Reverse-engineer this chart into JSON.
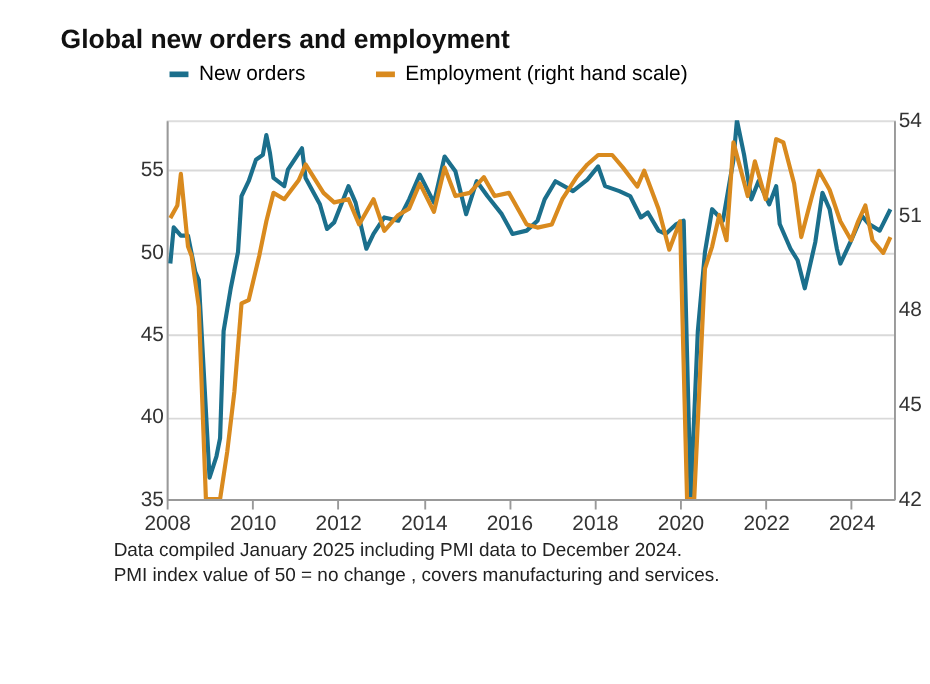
{
  "chart_data": {
    "type": "line",
    "title": "Global new orders and employment",
    "x": [
      "2008-02",
      "2008-03",
      "2008-05",
      "2008-07",
      "2008-09",
      "2008-10",
      "2009-01",
      "2009-03",
      "2009-04",
      "2009-05",
      "2009-07",
      "2009-09",
      "2009-10",
      "2009-12",
      "2010-02",
      "2010-04",
      "2010-05",
      "2010-06",
      "2010-07",
      "2010-10",
      "2010-11",
      "2011-03",
      "2011-04",
      "2011-08",
      "2011-10",
      "2011-12",
      "2012-04",
      "2012-06",
      "2012-09",
      "2012-11",
      "2013-02",
      "2013-06",
      "2013-09",
      "2013-12",
      "2014-04",
      "2014-07",
      "2014-10",
      "2015-01",
      "2015-04",
      "2015-07",
      "2015-11",
      "2016-02",
      "2016-06",
      "2016-09",
      "2016-11",
      "2017-02",
      "2017-07",
      "2017-11",
      "2018-02",
      "2018-04",
      "2018-08",
      "2018-11",
      "2019-02",
      "2019-04",
      "2019-07",
      "2019-09",
      "2019-12",
      "2020-02",
      "2020-04",
      "2020-06",
      "2020-08",
      "2020-10",
      "2021-01",
      "2021-04",
      "2021-05",
      "2021-07",
      "2021-09",
      "2021-11",
      "2022-02",
      "2022-04",
      "2022-05",
      "2022-08",
      "2022-10",
      "2022-12",
      "2023-03",
      "2023-05",
      "2023-07",
      "2023-09",
      "2023-10",
      "2024-01",
      "2024-04",
      "2024-06",
      "2024-09",
      "2024-12"
    ],
    "series": [
      {
        "name": "New orders",
        "color": "#1b6f8c",
        "values": [
          49.3,
          51.5,
          51,
          51,
          48.8,
          48.3,
          36.3,
          37.6,
          38.7,
          45.2,
          47.8,
          50,
          53.4,
          54.3,
          55.6,
          55.9,
          57.1,
          56,
          54.5,
          54,
          55,
          56.3,
          54.5,
          52.9,
          51.4,
          51.8,
          54,
          53,
          50.2,
          51.1,
          52.1,
          51.9,
          53.2,
          54.7,
          53,
          55.8,
          54.9,
          52.3,
          54.3,
          53.4,
          52.3,
          51.1,
          51.3,
          51.9,
          53.2,
          54.3,
          53.7,
          54.4,
          55.2,
          54,
          53.7,
          53.4,
          52.1,
          52.4,
          51.3,
          51.1,
          51.7,
          51.9,
          35,
          45.2,
          50,
          52.6,
          51.9,
          55.6,
          58,
          55.9,
          53.2,
          54.3,
          52.9,
          54,
          51.7,
          50.2,
          49.5,
          47.8,
          50.6,
          53.6,
          52.6,
          50.2,
          49.3,
          50.7,
          52.2,
          51.7,
          51.3,
          52.6
        ]
      },
      {
        "name": "Employment (right hand scale)",
        "color": "#d98a1e",
        "axis": "y2",
        "x": [
          "2008-02",
          "2008-04",
          "2008-05",
          "2008-07",
          "2008-08",
          "2008-10",
          "2008-12",
          "2009-04",
          "2009-06",
          "2009-08",
          "2009-10",
          "2009-12",
          "2010-03",
          "2010-05",
          "2010-07",
          "2010-10",
          "2011-02",
          "2011-04",
          "2011-09",
          "2011-12",
          "2012-04",
          "2012-07",
          "2012-11",
          "2013-02",
          "2013-06",
          "2013-09",
          "2013-12",
          "2014-04",
          "2014-07",
          "2014-10",
          "2015-02",
          "2015-06",
          "2015-09",
          "2016-01",
          "2016-06",
          "2016-09",
          "2017-01",
          "2017-04",
          "2017-08",
          "2017-11",
          "2018-02",
          "2018-06",
          "2018-09",
          "2019-01",
          "2019-03",
          "2019-07",
          "2019-10",
          "2020-01",
          "2020-03",
          "2020-05",
          "2020-08",
          "2020-10",
          "2020-12",
          "2021-02",
          "2021-04",
          "2021-08",
          "2021-10",
          "2022-01",
          "2022-04",
          "2022-06",
          "2022-09",
          "2022-11",
          "2023-02",
          "2023-04",
          "2023-07",
          "2023-10",
          "2024-01",
          "2024-03",
          "2024-05",
          "2024-07",
          "2024-10",
          "2024-12"
        ],
        "values": [
          50.9,
          51.3,
          52.3,
          50.0,
          49.7,
          48.1,
          42,
          42,
          43.5,
          45.4,
          48.2,
          48.3,
          49.7,
          50.8,
          51.7,
          51.5,
          52.1,
          52.6,
          51.7,
          51.4,
          51.5,
          50.7,
          51.5,
          50.5,
          51.0,
          51.2,
          52.0,
          51.1,
          52.5,
          51.6,
          51.7,
          52.2,
          51.6,
          51.7,
          50.7,
          50.6,
          50.7,
          51.5,
          52.2,
          52.6,
          52.9,
          52.9,
          52.5,
          51.9,
          52.4,
          51.2,
          49.9,
          50.8,
          42,
          42,
          49.3,
          50.0,
          51.0,
          50.2,
          53.3,
          51.6,
          52.7,
          51.5,
          53.4,
          53.3,
          52.0,
          50.3,
          51.6,
          52.4,
          51.8,
          50.8,
          50.2,
          50.8,
          51.3,
          50.2,
          49.8,
          50.3
        ]
      }
    ],
    "xlim": [
      "2008-01",
      "2025-01"
    ],
    "xticks": [
      {
        "value": "2008-01",
        "label": "2008"
      },
      {
        "value": "2010-01",
        "label": "2010"
      },
      {
        "value": "2012-01",
        "label": "2012"
      },
      {
        "value": "2014-01",
        "label": "2014"
      },
      {
        "value": "2016-01",
        "label": "2016"
      },
      {
        "value": "2018-01",
        "label": "2018"
      },
      {
        "value": "2020-01",
        "label": "2020"
      },
      {
        "value": "2022-01",
        "label": "2022"
      },
      {
        "value": "2024-01",
        "label": "2024"
      }
    ],
    "ylim": [
      35,
      58
    ],
    "yticks": [
      35,
      40,
      45,
      50,
      55
    ],
    "y2lim": [
      42,
      54
    ],
    "y2ticks": [
      42,
      45,
      48,
      51,
      54
    ],
    "grid": "y",
    "legend": "top",
    "line_style": "solid",
    "marker": "none",
    "annotations": [
      "Data compiled January 2025 including PMI data to December 2024.",
      "PMI index value of 50 = no change , covers manufacturing and services."
    ]
  }
}
